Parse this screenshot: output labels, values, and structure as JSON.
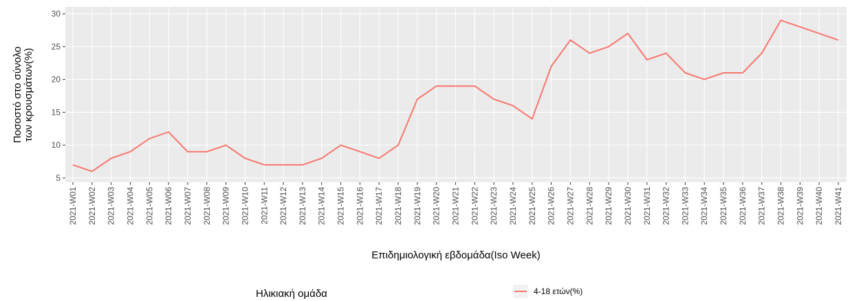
{
  "chart_data": {
    "type": "line",
    "y_label": [
      "Ποσοστό στο σύνολο",
      "των κρουσμάτων(%)"
    ],
    "x_label": "Επιδημιολογική εβδομάδα(Iso Week)",
    "legend_title": "Ηλικιακή ομάδα",
    "legend_position": "bottom",
    "grid": true,
    "categories": [
      "2021-W01",
      "2021-W02",
      "2021-W03",
      "2021-W04",
      "2021-W05",
      "2021-W06",
      "2021-W07",
      "2021-W08",
      "2021-W09",
      "2021-W10",
      "2021-W11",
      "2021-W12",
      "2021-W13",
      "2021-W14",
      "2021-W15",
      "2021-W16",
      "2021-W17",
      "2021-W18",
      "2021-W19",
      "2021-W20",
      "2021-W21",
      "2021-W22",
      "2021-W23",
      "2021-W24",
      "2021-W25",
      "2021-W26",
      "2021-W27",
      "2021-W28",
      "2021-W29",
      "2021-W30",
      "2021-W31",
      "2021-W32",
      "2021-W33",
      "2021-W34",
      "2021-W35",
      "2021-W36",
      "2021-W37",
      "2021-W38",
      "2021-W39",
      "2021-W40",
      "2021-W41"
    ],
    "series": [
      {
        "name": "4-18 ετών(%)",
        "color": "#f8766d",
        "values": [
          7,
          6,
          8,
          9,
          11,
          12,
          9,
          9,
          10,
          8,
          7,
          7,
          7,
          8,
          10,
          9,
          8,
          10,
          17,
          19,
          19,
          19,
          17,
          16,
          14,
          22,
          26,
          24,
          25,
          27,
          23,
          24,
          21,
          20,
          21,
          21,
          24,
          29,
          28,
          27,
          26
        ]
      }
    ],
    "ylim": [
      4.85,
      30.15
    ],
    "yticks": [
      5,
      10,
      15,
      20,
      25,
      30
    ]
  }
}
